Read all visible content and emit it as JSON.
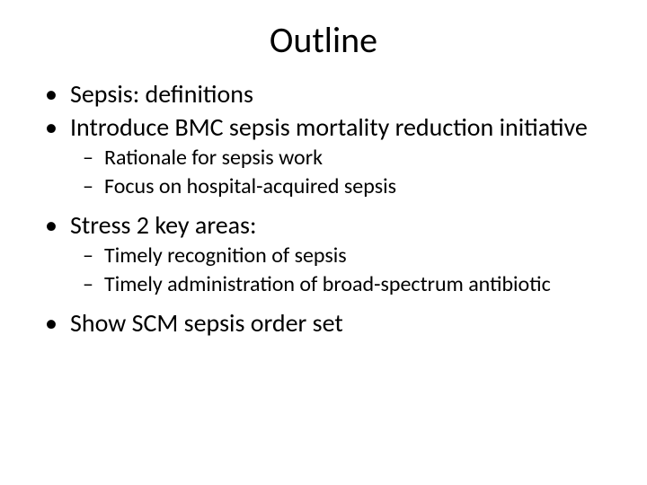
{
  "title": "Outline",
  "bullets": {
    "b1": "Sepsis:  definitions",
    "b2": "Introduce BMC sepsis mortality reduction initiative",
    "b2a": "Rationale for sepsis work",
    "b2b": "Focus on hospital-acquired sepsis",
    "b3": "Stress 2 key areas:",
    "b3a": "Timely recognition of sepsis",
    "b3b": "Timely administration of broad-spectrum antibiotic",
    "b4": "Show SCM sepsis order set"
  },
  "markers": {
    "level1": "•",
    "level2": "–"
  },
  "style": {
    "background_color": "#ffffff",
    "text_color": "#000000",
    "title_fontsize": 40,
    "level1_fontsize": 28,
    "level2_fontsize": 24,
    "font_family": "Calibri"
  }
}
